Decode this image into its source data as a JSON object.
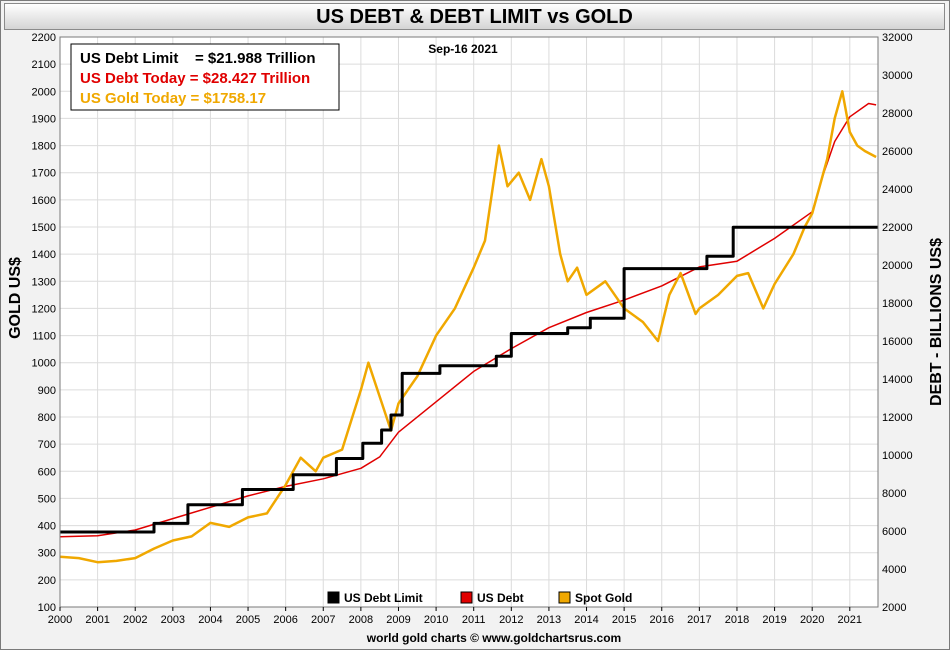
{
  "chart_data": {
    "type": "line",
    "title": "US DEBT & DEBT LIMIT vs GOLD",
    "date_label": "Sep-16  2021",
    "ylabel_left": "GOLD US$",
    "ylabel_right": "DEBT - BILLIONS US$",
    "credit": "world gold charts © www.goldchartsrus.com",
    "info_box": [
      {
        "text": "US Debt Limit    = $21.988 Trillion",
        "color": "#000000"
      },
      {
        "text": "US Debt Today = $28.427 Trillion",
        "color": "#e00000"
      },
      {
        "text": "US Gold Today = $1758.17",
        "color": "#f0a800"
      }
    ],
    "legend": [
      {
        "name": "US Debt Limit",
        "color": "#000000"
      },
      {
        "name": "US Debt",
        "color": "#e00000"
      },
      {
        "name": "Spot Gold",
        "color": "#f0a800"
      }
    ],
    "x_ticks": [
      "2000",
      "2001",
      "2002",
      "2003",
      "2004",
      "2005",
      "2006",
      "2007",
      "2008",
      "2009",
      "2010",
      "2011",
      "2012",
      "2013",
      "2014",
      "2015",
      "2016",
      "2017",
      "2018",
      "2019",
      "2020",
      "2021"
    ],
    "xlim": [
      2000,
      2021.75
    ],
    "y_left_ticks": [
      "100",
      "200",
      "300",
      "400",
      "500",
      "600",
      "700",
      "800",
      "900",
      "1000",
      "1100",
      "1200",
      "1300",
      "1400",
      "1500",
      "1600",
      "1700",
      "1800",
      "1900",
      "2000",
      "2100",
      "2200"
    ],
    "ylim_left": [
      100,
      2200
    ],
    "y_right_ticks": [
      "2000",
      "4000",
      "6000",
      "8000",
      "10000",
      "12000",
      "14000",
      "16000",
      "18000",
      "20000",
      "22000",
      "24000",
      "26000",
      "28000",
      "30000",
      "32000"
    ],
    "ylim_right": [
      2000,
      32000
    ],
    "grid": true,
    "series": [
      {
        "name": "US Debt Limit",
        "axis": "right",
        "color": "#000000",
        "x": [
          2000.0,
          2002.5,
          2002.5,
          2003.4,
          2003.4,
          2004.85,
          2004.85,
          2006.2,
          2006.2,
          2007.35,
          2007.35,
          2008.05,
          2008.05,
          2008.55,
          2008.55,
          2008.8,
          2008.8,
          2009.1,
          2009.1,
          2010.1,
          2010.1,
          2011.6,
          2011.6,
          2012.0,
          2012.0,
          2013.5,
          2013.5,
          2014.1,
          2014.1,
          2015.0,
          2015.0,
          2017.2,
          2017.2,
          2017.9,
          2017.9,
          2019.1,
          2019.1,
          2021.75
        ],
        "values": [
          5950,
          5950,
          6400,
          6400,
          7384,
          7384,
          8184,
          8184,
          8965,
          8965,
          9815,
          9815,
          10615,
          10615,
          11315,
          11315,
          12104,
          12104,
          14294,
          14294,
          14694,
          14694,
          15194,
          15194,
          16394,
          16394,
          16699,
          16699,
          17200,
          17200,
          19808,
          19808,
          20456,
          20456,
          21988,
          21988,
          21988,
          21988
        ]
      },
      {
        "name": "US Debt",
        "axis": "right",
        "color": "#e00000",
        "x": [
          2000.0,
          2001.0,
          2002.0,
          2003.0,
          2004.0,
          2005.0,
          2006.0,
          2007.0,
          2008.0,
          2008.5,
          2009.0,
          2010.0,
          2011.0,
          2012.0,
          2013.0,
          2014.0,
          2015.0,
          2016.0,
          2017.0,
          2018.0,
          2019.0,
          2020.0,
          2020.3,
          2020.6,
          2021.0,
          2021.5,
          2021.7
        ],
        "values": [
          5700,
          5750,
          6050,
          6650,
          7250,
          7850,
          8350,
          8750,
          9300,
          9900,
          11200,
          12800,
          14400,
          15600,
          16700,
          17500,
          18150,
          18900,
          19900,
          20200,
          21400,
          22800,
          24800,
          26500,
          27800,
          28500,
          28427
        ]
      },
      {
        "name": "Spot Gold",
        "axis": "left",
        "color": "#f0a800",
        "x": [
          2000.0,
          2000.5,
          2001.0,
          2001.5,
          2002.0,
          2002.5,
          2003.0,
          2003.5,
          2004.0,
          2004.5,
          2005.0,
          2005.5,
          2006.0,
          2006.4,
          2006.8,
          2007.0,
          2007.5,
          2008.0,
          2008.2,
          2008.8,
          2009.0,
          2009.5,
          2010.0,
          2010.5,
          2011.0,
          2011.3,
          2011.67,
          2011.9,
          2012.2,
          2012.5,
          2012.8,
          2013.0,
          2013.3,
          2013.5,
          2013.75,
          2014.0,
          2014.5,
          2015.0,
          2015.5,
          2015.9,
          2016.2,
          2016.5,
          2016.9,
          2017.0,
          2017.5,
          2018.0,
          2018.3,
          2018.7,
          2019.0,
          2019.5,
          2019.8,
          2020.0,
          2020.2,
          2020.4,
          2020.6,
          2020.8,
          2021.0,
          2021.2,
          2021.4,
          2021.7
        ],
        "values": [
          285,
          280,
          265,
          270,
          280,
          315,
          345,
          360,
          410,
          395,
          430,
          445,
          550,
          650,
          600,
          650,
          680,
          900,
          1000,
          750,
          850,
          950,
          1100,
          1200,
          1350,
          1450,
          1800,
          1650,
          1700,
          1600,
          1750,
          1650,
          1400,
          1300,
          1350,
          1250,
          1300,
          1200,
          1150,
          1080,
          1250,
          1330,
          1180,
          1200,
          1250,
          1320,
          1330,
          1200,
          1290,
          1400,
          1500,
          1550,
          1650,
          1750,
          1900,
          2000,
          1850,
          1800,
          1780,
          1758
        ]
      }
    ]
  }
}
